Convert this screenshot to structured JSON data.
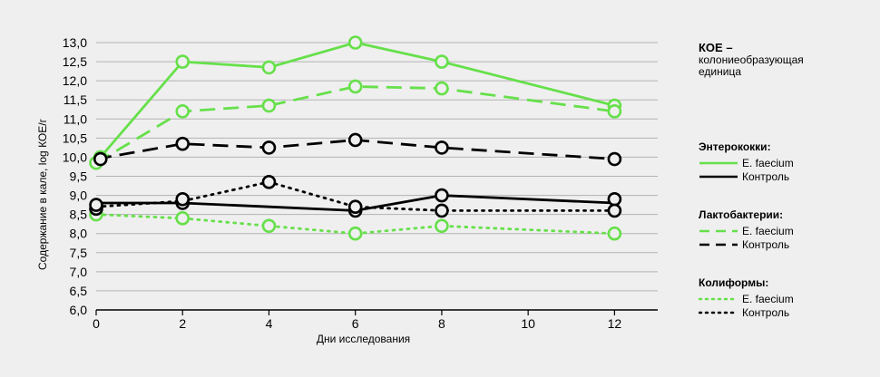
{
  "chart_data": {
    "type": "line",
    "x": [
      0,
      2,
      4,
      6,
      8,
      12
    ],
    "x_ticks": [
      "0",
      "2",
      "4",
      "6",
      "8",
      "10",
      "12"
    ],
    "y_ticks": [
      "6,0",
      "6,5",
      "7,0",
      "7,5",
      "8,0",
      "8,5",
      "9,0",
      "9,5",
      "10,0",
      "10,5",
      "11,0",
      "11,5",
      "12,0",
      "12,5",
      "13,0"
    ],
    "xlabel": "Дни исследования",
    "ylabel": "Содержание в кале, log КОЕ/г",
    "xlim": [
      0,
      13
    ],
    "ylim": [
      6.0,
      13.0
    ],
    "grid": "horizontal",
    "legend_position": "right",
    "series": [
      {
        "group": "Энтерококки",
        "name": "E. faecium",
        "color": "#66e04a",
        "dash": "solid",
        "points": [
          [
            0.1,
            10.0
          ],
          [
            2,
            12.5
          ],
          [
            4,
            12.35
          ],
          [
            6,
            13.0
          ],
          [
            8,
            12.5
          ],
          [
            12,
            11.35
          ]
        ],
        "markers": [
          [
            0.1,
            10.0
          ],
          [
            2,
            12.5
          ],
          [
            4,
            12.35
          ],
          [
            6,
            13.0
          ],
          [
            8,
            12.5
          ],
          [
            12,
            11.35
          ]
        ]
      },
      {
        "group": "Лактобактерии",
        "name": "E. faecium",
        "color": "#66e04a",
        "dash": "dashed",
        "points": [
          [
            0,
            9.85
          ],
          [
            2,
            11.2
          ],
          [
            4,
            11.35
          ],
          [
            6,
            11.85
          ],
          [
            8,
            11.8
          ],
          [
            12,
            11.2
          ]
        ],
        "markers": [
          [
            0,
            9.85
          ],
          [
            2,
            11.2
          ],
          [
            4,
            11.35
          ],
          [
            6,
            11.85
          ],
          [
            8,
            11.8
          ],
          [
            12,
            11.2
          ]
        ]
      },
      {
        "group": "Коллиформы",
        "name": "E. faecium",
        "color": "#66e04a",
        "dash": "dotted",
        "points": [
          [
            0,
            8.5
          ],
          [
            2,
            8.4
          ],
          [
            4,
            8.2
          ],
          [
            6,
            8.0
          ],
          [
            8,
            8.2
          ],
          [
            12,
            8.0
          ]
        ],
        "markers": [
          [
            0,
            8.5
          ],
          [
            2,
            8.4
          ],
          [
            4,
            8.2
          ],
          [
            6,
            8.0
          ],
          [
            8,
            8.2
          ],
          [
            12,
            8.0
          ]
        ]
      },
      {
        "group": "Энтерококки",
        "name": "Контроль",
        "color": "#000000",
        "dash": "solid",
        "points": [
          [
            0,
            8.8
          ],
          [
            2,
            8.8
          ],
          [
            4,
            8.7
          ],
          [
            6,
            8.6
          ],
          [
            8,
            9.0
          ],
          [
            12,
            8.8
          ]
        ],
        "markers": [
          [
            0,
            8.65
          ],
          [
            2,
            8.8
          ],
          [
            6,
            8.6
          ],
          [
            8,
            9.0
          ],
          [
            12,
            8.9
          ]
        ]
      },
      {
        "group": "Лактобактерии",
        "name": "Контроль",
        "color": "#000000",
        "dash": "dashed",
        "points": [
          [
            0,
            9.95
          ],
          [
            2,
            10.35
          ],
          [
            4,
            10.25
          ],
          [
            6,
            10.45
          ],
          [
            8,
            10.25
          ],
          [
            12,
            9.95
          ]
        ],
        "markers": [
          [
            0.1,
            9.95
          ],
          [
            2,
            10.35
          ],
          [
            4,
            10.25
          ],
          [
            6,
            10.45
          ],
          [
            8,
            10.25
          ],
          [
            12,
            9.95
          ]
        ]
      },
      {
        "group": "Коллиформы",
        "name": "Контроль",
        "color": "#000000",
        "dash": "dotted",
        "points": [
          [
            0,
            8.7
          ],
          [
            2,
            8.85
          ],
          [
            4,
            9.35
          ],
          [
            6,
            8.7
          ],
          [
            8,
            8.6
          ],
          [
            12,
            8.6
          ]
        ],
        "markers": [
          [
            0,
            8.75
          ],
          [
            2,
            8.9
          ],
          [
            4,
            9.35
          ],
          [
            6,
            8.7
          ],
          [
            8,
            8.6
          ],
          [
            12,
            8.6
          ]
        ]
      }
    ]
  },
  "legend": {
    "note_title": "КОЕ –",
    "note_text": "колониеобразующая единица",
    "groups": [
      {
        "title": "Энтерококки:",
        "dash": "solid",
        "items": [
          {
            "label": "E. faecium",
            "color": "#66e04a"
          },
          {
            "label": "Контроль",
            "color": "#000000"
          }
        ]
      },
      {
        "title": "Лактобактерии:",
        "dash": "dashed",
        "items": [
          {
            "label": "E. faecium",
            "color": "#66e04a"
          },
          {
            "label": "Контроль",
            "color": "#000000"
          }
        ]
      },
      {
        "title": "Колиформы:",
        "dash": "dotted",
        "items": [
          {
            "label": "E. faecium",
            "color": "#66e04a"
          },
          {
            "label": "Контроль",
            "color": "#000000"
          }
        ]
      }
    ]
  }
}
